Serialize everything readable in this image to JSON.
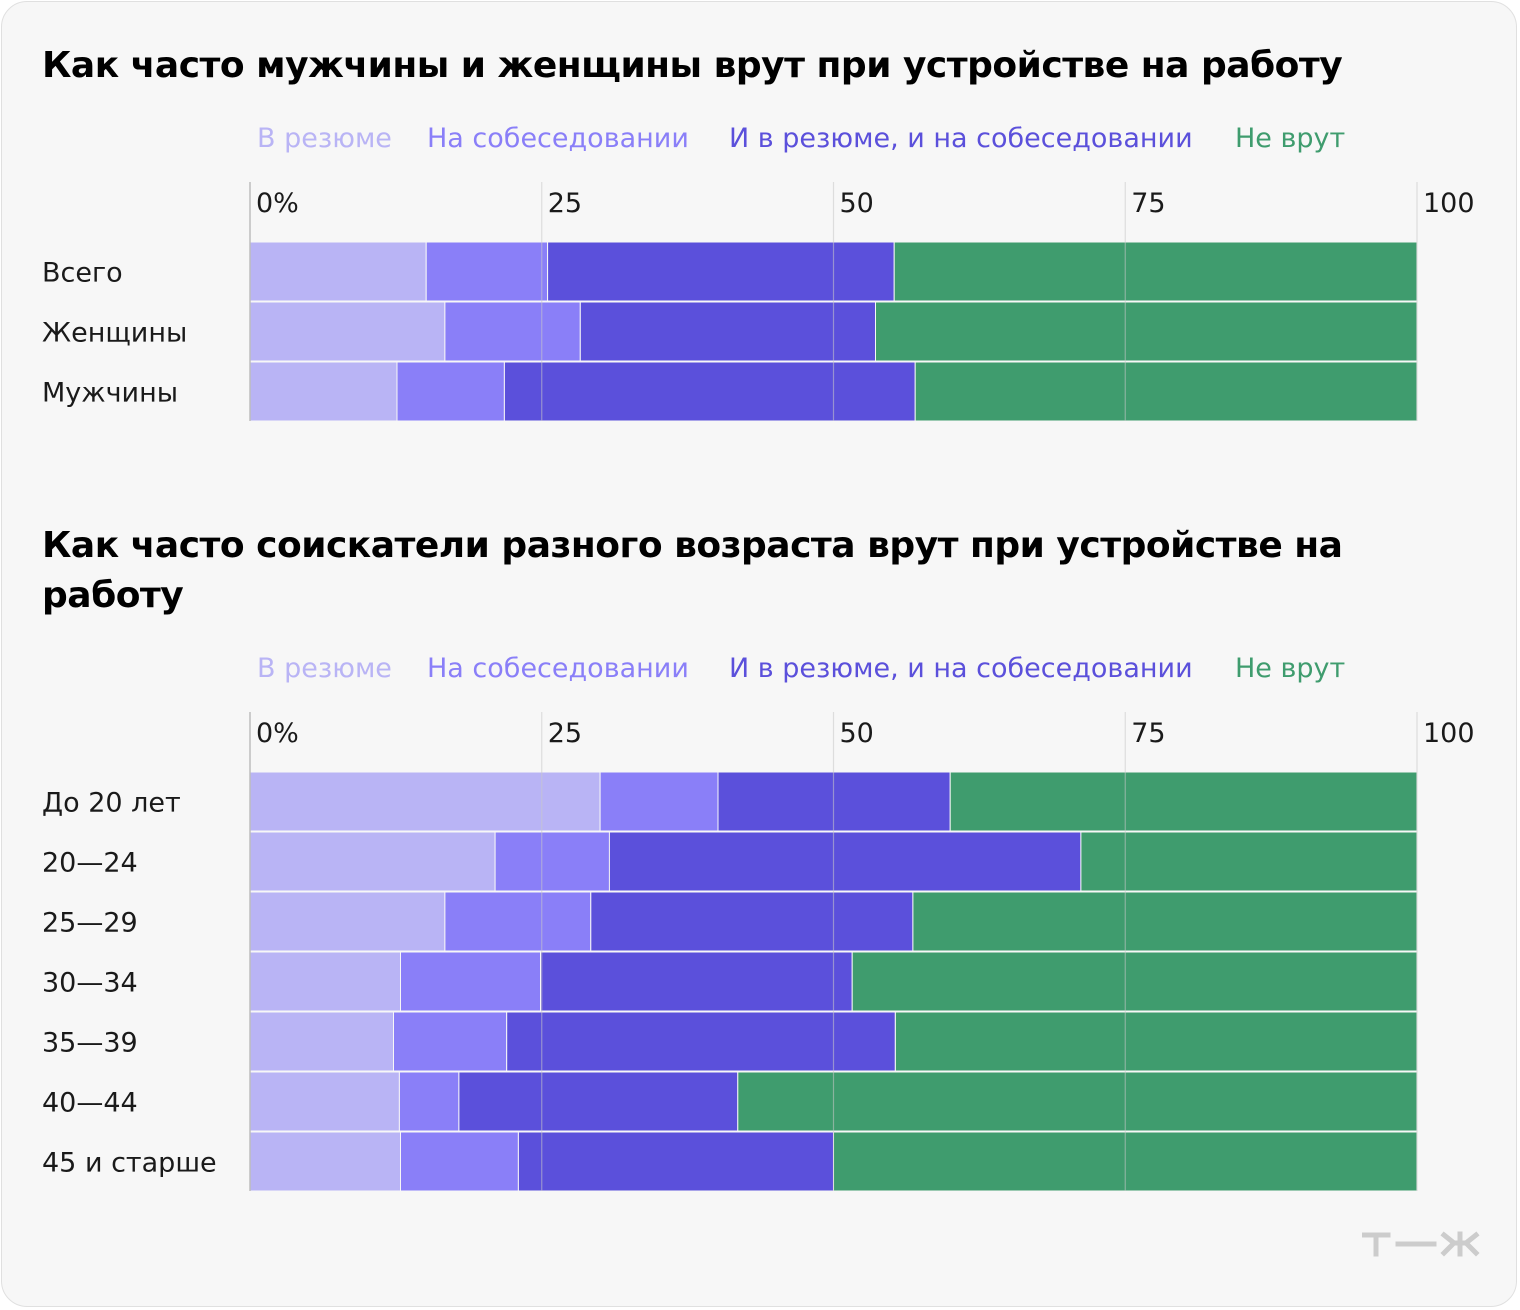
{
  "colors": {
    "v_rezume": "#b9b4f5",
    "na_sobesedovanii": "#8a7ff8",
    "oba": "#5b50db",
    "ne_vrut": "#3f9c6e",
    "title": "#000000",
    "text": "#1a1a1a",
    "grid": "#c9c9c9",
    "card_bg": "#f7f7f7",
    "watermark": "#cccccc"
  },
  "logo": "т—ж",
  "chart_data": [
    {
      "type": "bar",
      "orientation": "horizontal",
      "stacked": true,
      "title": "Как часто мужчины и женщины врут при устройстве на работу",
      "legend": [
        "В резюме",
        "На собеседовании",
        "И в резюме, и на собеседовании",
        "Не врут"
      ],
      "legend_position": "top",
      "xlim": [
        0,
        100
      ],
      "ticks": [
        0,
        25,
        50,
        75,
        100
      ],
      "tick_labels": [
        "0%",
        "25",
        "50",
        "75",
        "100"
      ],
      "grid": true,
      "categories": [
        "Всего",
        "Женщины",
        "Мужчины"
      ],
      "series": [
        {
          "name": "В резюме",
          "values": [
            15.1,
            16.7,
            12.6
          ]
        },
        {
          "name": "На собеседовании",
          "values": [
            10.4,
            11.6,
            9.2
          ]
        },
        {
          "name": "И в резюме, и на собеседовании",
          "values": [
            29.7,
            25.3,
            35.2
          ]
        },
        {
          "name": "Не врут",
          "values": [
            44.8,
            46.4,
            43.0
          ]
        }
      ]
    },
    {
      "type": "bar",
      "orientation": "horizontal",
      "stacked": true,
      "title": "Как часто соискатели разного возраста врут при устройстве на работу",
      "legend": [
        "В резюме",
        "На собеседовании",
        "И в резюме, и на собеседовании",
        "Не врут"
      ],
      "legend_position": "top",
      "xlim": [
        0,
        100
      ],
      "ticks": [
        0,
        25,
        50,
        75,
        100
      ],
      "tick_labels": [
        "0%",
        "25",
        "50",
        "75",
        "100"
      ],
      "grid": true,
      "categories": [
        "До 20 лет",
        "20—24",
        "25—29",
        "30—34",
        "35—39",
        "40—44",
        "45 и старше"
      ],
      "series": [
        {
          "name": "В резюме",
          "values": [
            30.0,
            21.0,
            16.7,
            12.9,
            12.3,
            12.8,
            12.9
          ]
        },
        {
          "name": "На собеседовании",
          "values": [
            10.1,
            9.8,
            12.5,
            12.0,
            9.7,
            5.1,
            10.1
          ]
        },
        {
          "name": "И в резюме, и на собеседовании",
          "values": [
            19.9,
            40.4,
            27.6,
            26.7,
            33.3,
            23.9,
            27.0
          ]
        },
        {
          "name": "Не врут",
          "values": [
            40.0,
            28.8,
            43.2,
            48.4,
            44.7,
            58.2,
            50.0
          ]
        }
      ]
    }
  ]
}
